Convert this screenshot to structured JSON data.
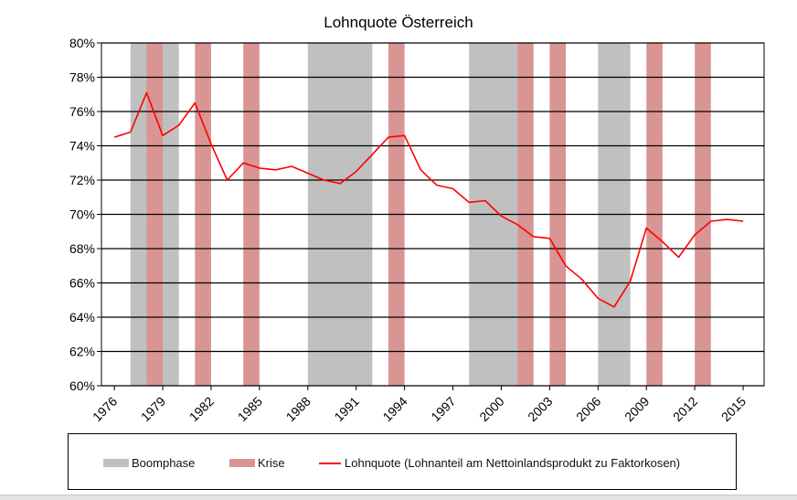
{
  "chart_data": {
    "type": "line",
    "title": "Lohnquote  Österreich",
    "xlabel": "",
    "ylabel": "",
    "ylim": [
      60,
      80
    ],
    "xlim": [
      1975.2,
      2016.3
    ],
    "y_ticks": [
      60,
      62,
      64,
      66,
      68,
      70,
      72,
      74,
      76,
      78,
      80
    ],
    "y_tick_labels": [
      "60%",
      "62%",
      "64%",
      "66%",
      "68%",
      "70%",
      "72%",
      "74%",
      "76%",
      "78%",
      "80%"
    ],
    "x_ticks": [
      1976,
      1979,
      1982,
      1985,
      1988,
      1991,
      1994,
      1997,
      2000,
      2003,
      2006,
      2009,
      2012,
      2015
    ],
    "x_tick_labels": [
      "1976",
      "1979",
      "1982",
      "1985",
      "1988",
      "1991",
      "1994",
      "1997",
      "2000",
      "2003",
      "2006",
      "2009",
      "2012",
      "2015"
    ],
    "grid": true,
    "legend_position": "bottom",
    "series": [
      {
        "name": "Lohnquote (Lohnanteil am Nettoinlandsprodukt zu Faktorkosen)",
        "color": "#ff0000",
        "x": [
          1976,
          1977,
          1978,
          1979,
          1980,
          1981,
          1982,
          1983,
          1984,
          1985,
          1986,
          1987,
          1988,
          1989,
          1990,
          1991,
          1992,
          1993,
          1994,
          1995,
          1996,
          1997,
          1998,
          1999,
          2000,
          2001,
          2002,
          2003,
          2004,
          2005,
          2006,
          2007,
          2008,
          2009,
          2010,
          2011,
          2012,
          2013,
          2014,
          2015
        ],
        "y": [
          74.5,
          74.8,
          77.1,
          74.6,
          75.2,
          76.5,
          74.1,
          72.0,
          73.0,
          72.7,
          72.6,
          72.8,
          72.4,
          72.0,
          71.8,
          72.5,
          73.5,
          74.5,
          74.6,
          72.6,
          71.7,
          71.5,
          70.7,
          70.8,
          69.9,
          69.4,
          68.7,
          68.6,
          67.0,
          66.2,
          65.1,
          64.6,
          66.1,
          69.2,
          68.4,
          67.5,
          68.8,
          69.6,
          69.7,
          69.6
        ]
      }
    ],
    "shaded_periods": [
      {
        "kind": "boom",
        "start": 1977.0,
        "end": 1980.0
      },
      {
        "kind": "boom",
        "start": 1988.0,
        "end": 1992.0
      },
      {
        "kind": "boom",
        "start": 1998.0,
        "end": 2001.0
      },
      {
        "kind": "boom",
        "start": 2006.0,
        "end": 2008.0
      },
      {
        "kind": "crisis",
        "start": 1978.0,
        "end": 1979.0
      },
      {
        "kind": "crisis",
        "start": 1981.0,
        "end": 1982.0
      },
      {
        "kind": "crisis",
        "start": 1984.0,
        "end": 1985.0
      },
      {
        "kind": "crisis",
        "start": 1993.0,
        "end": 1994.0
      },
      {
        "kind": "crisis",
        "start": 2001.0,
        "end": 2002.0
      },
      {
        "kind": "crisis",
        "start": 2003.0,
        "end": 2004.0
      },
      {
        "kind": "crisis",
        "start": 2009.0,
        "end": 2010.0
      },
      {
        "kind": "crisis",
        "start": 2012.0,
        "end": 2013.0
      }
    ],
    "colors": {
      "boom": "#c0c0c0",
      "crisis": "#d99594",
      "line": "#ff0000"
    }
  },
  "legend": {
    "boom_label": "Boomphase",
    "crisis_label": "Krise",
    "line_label": "Lohnquote (Lohnanteil am Nettoinlandsprodukt zu Faktorkosen)"
  }
}
